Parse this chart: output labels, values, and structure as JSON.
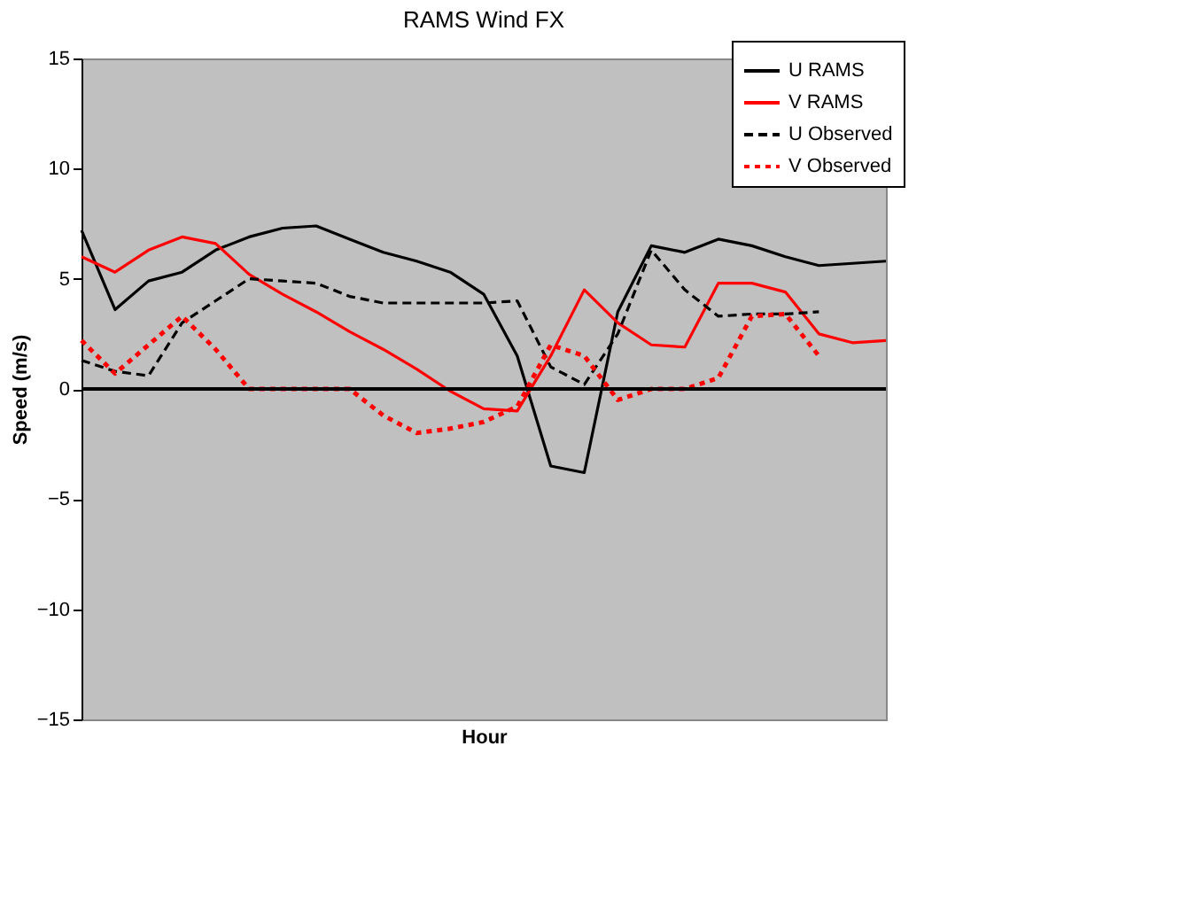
{
  "chart_data": {
    "type": "line",
    "title": "RAMS Wind FX",
    "xlabel": "Hour",
    "ylabel": "Speed (m/s)",
    "categories": [
      null,
      null,
      null,
      null,
      null,
      null,
      null,
      null,
      null,
      null,
      null,
      null,
      null,
      null,
      null,
      null,
      null,
      null,
      null,
      null,
      null,
      null,
      null,
      null,
      null
    ],
    "ylim": [
      -15,
      15
    ],
    "yticks": [
      -15,
      -10,
      -5,
      0,
      5,
      10,
      15
    ],
    "grid": false,
    "legend": "top right",
    "marker": "none",
    "ref_lines": [
      {
        "axis": "y",
        "value": 0,
        "color": "#000000"
      }
    ],
    "series": [
      {
        "name": "U RAMS",
        "color": "#000000",
        "line_style": "solid",
        "values": [
          7.2,
          3.6,
          4.9,
          5.3,
          6.3,
          6.9,
          7.3,
          7.4,
          6.8,
          6.2,
          5.8,
          5.3,
          4.3,
          1.5,
          -3.5,
          -3.8,
          3.5,
          6.5,
          6.2,
          6.8,
          6.5,
          6.0,
          5.6,
          5.7,
          5.8
        ]
      },
      {
        "name": "V RAMS",
        "color": "#ff0000",
        "line_style": "solid",
        "values": [
          6.0,
          5.3,
          6.3,
          6.9,
          6.6,
          5.2,
          4.3,
          3.5,
          2.6,
          1.8,
          0.9,
          -0.1,
          -0.9,
          -1.0,
          1.5,
          4.5,
          3.0,
          2.0,
          1.9,
          4.8,
          4.8,
          4.4,
          2.5,
          2.1,
          2.2
        ]
      },
      {
        "name": "U Observed",
        "color": "#000000",
        "line_style": "dashed",
        "values": [
          1.3,
          0.8,
          0.6,
          3.0,
          4.0,
          5.0,
          4.9,
          4.8,
          4.2,
          3.9,
          3.9,
          3.9,
          3.9,
          4.0,
          1.0,
          0.2,
          2.5,
          6.3,
          4.5,
          3.3,
          3.4,
          3.4,
          3.5,
          null,
          null
        ]
      },
      {
        "name": "V Observed",
        "color": "#ff0000",
        "line_style": "dotted",
        "values": [
          2.2,
          0.7,
          2.0,
          3.3,
          1.8,
          0.0,
          0.0,
          0.0,
          0.0,
          -1.2,
          -2.0,
          -1.8,
          -1.5,
          -0.8,
          2.0,
          1.5,
          -0.5,
          0.0,
          0.0,
          0.5,
          3.3,
          3.4,
          1.5,
          null,
          null
        ]
      }
    ]
  }
}
